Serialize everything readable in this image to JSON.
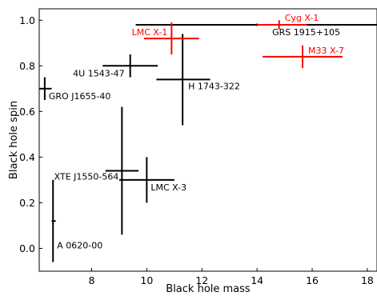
{
  "chart_data": {
    "type": "scatter",
    "title": "",
    "xlabel": "Black hole mass",
    "ylabel": "Black hole spin",
    "xlim": [
      6.1,
      18.35
    ],
    "ylim": [
      -0.1,
      1.05
    ],
    "xticks": [
      8,
      10,
      12,
      14,
      16,
      18
    ],
    "yticks": [
      0.0,
      0.2,
      0.4,
      0.6,
      0.8,
      1.0
    ],
    "grid": false,
    "legend": "none",
    "colors": {
      "default": "#000000",
      "highlight": "#ff0000"
    },
    "points": [
      {
        "name": "GRO J1655-40",
        "mass": 6.3,
        "mass_lo": 6.05,
        "mass_hi": 6.55,
        "spin": 0.7,
        "spin_lo": 0.65,
        "spin_hi": 0.75,
        "color": "#000000"
      },
      {
        "name": "A 0620-00",
        "mass": 6.6,
        "mass_lo": 6.55,
        "mass_hi": 6.7,
        "spin": 0.12,
        "spin_lo": -0.06,
        "spin_hi": 0.3,
        "color": "#000000"
      },
      {
        "name": "4U 1543-47",
        "mass": 9.4,
        "mass_lo": 8.4,
        "mass_hi": 10.4,
        "spin": 0.8,
        "spin_lo": 0.75,
        "spin_hi": 0.85,
        "color": "#000000"
      },
      {
        "name": "XTE J1550-564",
        "mass": 9.1,
        "mass_lo": 8.5,
        "mass_hi": 9.7,
        "spin": 0.34,
        "spin_lo": 0.06,
        "spin_hi": 0.62,
        "color": "#000000"
      },
      {
        "name": "LMC X-3",
        "mass": 10.0,
        "mass_lo": 9.0,
        "mass_hi": 11.0,
        "spin": 0.3,
        "spin_lo": 0.2,
        "spin_hi": 0.4,
        "color": "#000000"
      },
      {
        "name": "H 1743-322",
        "mass": 11.3,
        "mass_lo": 10.35,
        "mass_hi": 12.3,
        "spin": 0.74,
        "spin_lo": 0.54,
        "spin_hi": 0.94,
        "color": "#000000"
      },
      {
        "name": "GRS 1915+105",
        "mass": 14.0,
        "mass_lo": 9.6,
        "mass_hi": 18.4,
        "spin": 0.98,
        "spin_lo": 0.975,
        "spin_hi": 0.985,
        "color": "#000000"
      },
      {
        "name": "LMC X-1",
        "mass": 10.9,
        "mass_lo": 9.9,
        "mass_hi": 11.9,
        "spin": 0.92,
        "spin_lo": 0.85,
        "spin_hi": 0.99,
        "color": "#ff0000"
      },
      {
        "name": "Cyg X-1",
        "mass": 14.8,
        "mass_lo": 14.0,
        "mass_hi": 15.8,
        "spin": 0.98,
        "spin_lo": 0.96,
        "spin_hi": 1.0,
        "color": "#ff0000"
      },
      {
        "name": "M33 X-7",
        "mass": 15.65,
        "mass_lo": 14.2,
        "mass_hi": 17.1,
        "spin": 0.84,
        "spin_lo": 0.79,
        "spin_hi": 0.89,
        "color": "#ff0000"
      }
    ]
  }
}
